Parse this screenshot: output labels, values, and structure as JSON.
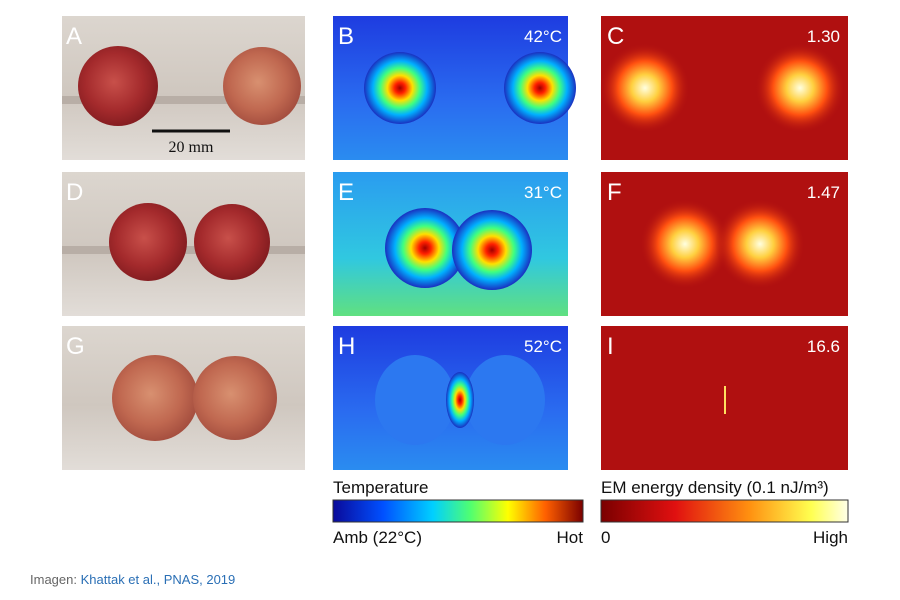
{
  "panels": [
    {
      "label": "A"
    },
    {
      "label": "B",
      "annotation": "42°C"
    },
    {
      "label": "C",
      "annotation": "1.30"
    },
    {
      "label": "D"
    },
    {
      "label": "E",
      "annotation": "31°C"
    },
    {
      "label": "F",
      "annotation": "1.47"
    },
    {
      "label": "G"
    },
    {
      "label": "H",
      "annotation": "52°C"
    },
    {
      "label": "I",
      "annotation": "16.6"
    }
  ],
  "scale_bar": "20 mm",
  "legends": [
    {
      "title": "Temperature",
      "min": "Amb (22°C)",
      "max": "Hot"
    },
    {
      "title": "EM energy density (0.1 nJ/m³)",
      "min": "0",
      "max": "High"
    }
  ],
  "caption": {
    "prefix": "Imagen:",
    "link": "Khattak et al., PNAS, 2019"
  }
}
